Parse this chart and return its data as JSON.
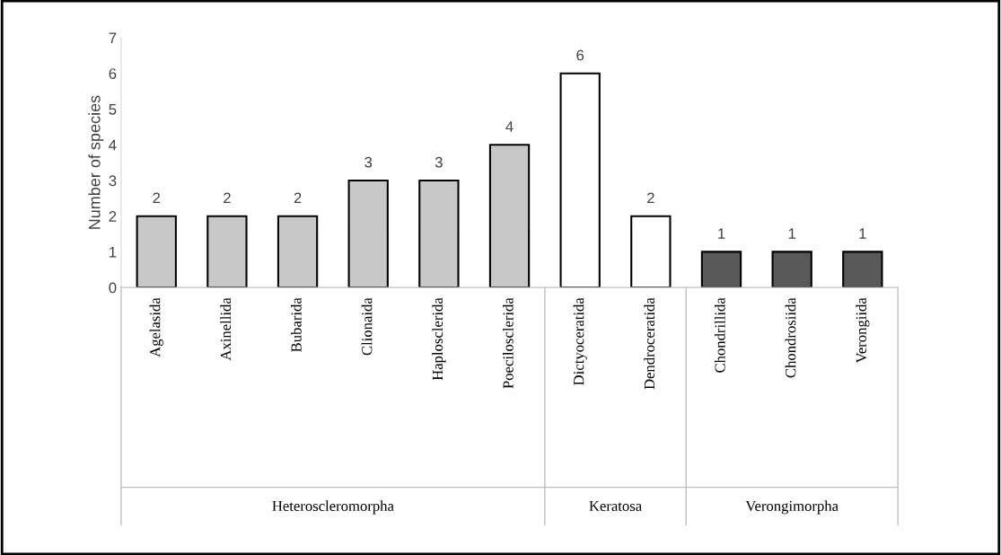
{
  "chart_data": {
    "type": "bar",
    "categories": [
      "Agelasida",
      "Axinellida",
      "Bubarida",
      "Clionaida",
      "Haplosclerida",
      "Poecilosclerida",
      "Dictyoceratida",
      "Dendroceratida",
      "Chondrillida",
      "Chondrosiida",
      "Verongiida"
    ],
    "values": [
      2,
      2,
      2,
      3,
      3,
      4,
      6,
      2,
      1,
      1,
      1
    ],
    "colors": [
      "#c8c8c8",
      "#c8c8c8",
      "#c8c8c8",
      "#c8c8c8",
      "#c8c8c8",
      "#c8c8c8",
      "#ffffff",
      "#ffffff",
      "#595959",
      "#595959",
      "#595959"
    ],
    "ylabel": "Number of species",
    "ylim": [
      0,
      7
    ],
    "yticks": [
      0,
      1,
      2,
      3,
      4,
      5,
      6,
      7
    ],
    "data_labels": true,
    "grid": false,
    "legend": false,
    "annotations": [
      "Heteroscleromorpha",
      "Keratosa",
      "Verongimorpha"
    ]
  }
}
